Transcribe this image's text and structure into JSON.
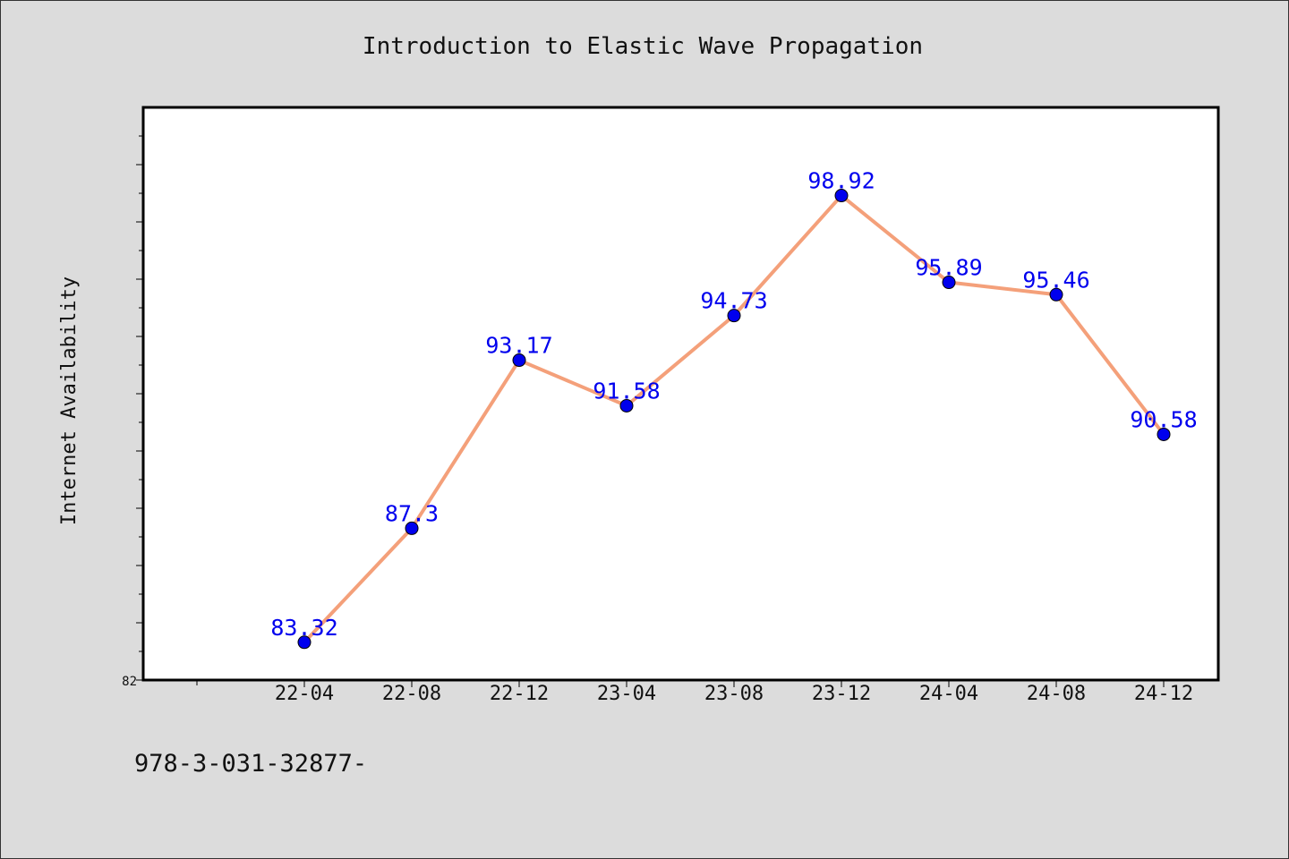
{
  "chart_data": {
    "type": "line",
    "title": "Introduction to Elastic Wave Propagation",
    "xlabel": "",
    "ylabel": "Internet Availability",
    "categories": [
      "22-04",
      "22-08",
      "22-12",
      "23-04",
      "23-08",
      "23-12",
      "24-04",
      "24-08",
      "24-12"
    ],
    "series": [
      {
        "values": [
          83.32,
          87.3,
          93.17,
          91.58,
          94.73,
          98.92,
          95.89,
          95.46,
          90.58
        ],
        "labels": [
          "83.32",
          "87.3",
          "93.17",
          "91.58",
          "94.73",
          "98.92",
          "95.89",
          "95.46",
          "90.58"
        ],
        "line_color": "#f4a07a",
        "marker_color": "#0000ee"
      }
    ],
    "ylim": [
      82,
      102
    ],
    "y_tick_label": "82",
    "grid": false,
    "legend": "none"
  },
  "footer": {
    "text": "978-3-031-32877-"
  },
  "colors": {
    "background": "#dcdcdc",
    "plot_background": "#ffffff",
    "line": "#f4a07a",
    "markers": "#0000ee",
    "data_labels": "#0000ee"
  }
}
